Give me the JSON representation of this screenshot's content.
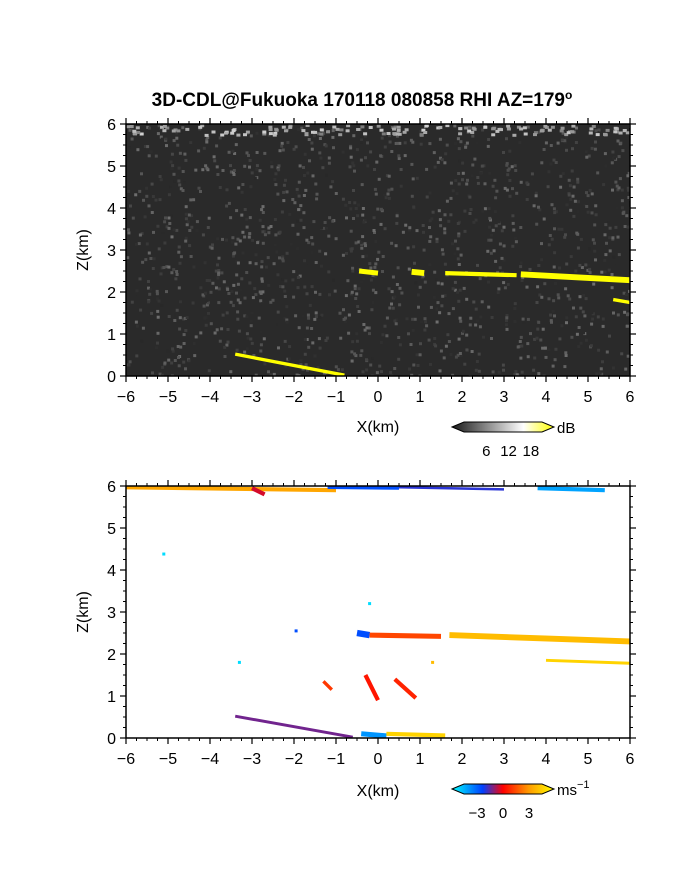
{
  "chart_data": [
    {
      "panel": "reflectivity",
      "type": "heatmap",
      "title": "3D-CDL@Fukuoka 170118 080858 RHI AZ=179",
      "title_superscript": "o",
      "xlabel": "X(km)",
      "ylabel": "Z(km)",
      "xlim": [
        -6,
        6
      ],
      "ylim": [
        0,
        6
      ],
      "x_ticks": [
        "−6",
        "−5",
        "−4",
        "−3",
        "−2",
        "−1",
        "0",
        "1",
        "2",
        "3",
        "4",
        "5",
        "6"
      ],
      "y_ticks": [
        "0",
        "1",
        "2",
        "3",
        "4",
        "5",
        "6"
      ],
      "colorbar": {
        "unit": "dB",
        "tick_labels": [
          "6",
          "12",
          "18"
        ],
        "ticks": [
          6,
          12,
          18
        ],
        "range": [
          0,
          21
        ],
        "colors": [
          "#1a1a1a",
          "#ffffff",
          "#ffff00"
        ]
      },
      "background_color": "#2a2a2a",
      "echo_color": "#ffff00",
      "echo_segments": [
        {
          "x": [
            -3.4,
            -0.8
          ],
          "z": [
            0.52,
            0.02
          ],
          "thickness": 0.08
        },
        {
          "x": [
            -0.45,
            0.0
          ],
          "z": [
            2.5,
            2.45
          ],
          "thickness": 0.12
        },
        {
          "x": [
            0.8,
            1.1
          ],
          "z": [
            2.48,
            2.45
          ],
          "thickness": 0.14
        },
        {
          "x": [
            1.6,
            3.3
          ],
          "z": [
            2.45,
            2.4
          ],
          "thickness": 0.1
        },
        {
          "x": [
            3.4,
            6.0
          ],
          "z": [
            2.42,
            2.28
          ],
          "thickness": 0.14
        },
        {
          "x": [
            5.6,
            6.0
          ],
          "z": [
            1.82,
            1.75
          ],
          "thickness": 0.08
        }
      ]
    },
    {
      "panel": "doppler-velocity",
      "type": "heatmap",
      "xlabel": "X(km)",
      "ylabel": "Z(km)",
      "xlim": [
        -6,
        6
      ],
      "ylim": [
        0,
        6
      ],
      "x_ticks": [
        "−6",
        "−5",
        "−4",
        "−3",
        "−2",
        "−1",
        "0",
        "1",
        "2",
        "3",
        "4",
        "5",
        "6"
      ],
      "y_ticks": [
        "0",
        "1",
        "2",
        "3",
        "4",
        "5",
        "6"
      ],
      "colorbar": {
        "unit": "ms",
        "unit_superscript": "−1",
        "tick_labels": [
          "−3",
          "0",
          "3"
        ],
        "ticks": [
          -3,
          0,
          3
        ],
        "range": [
          -4.5,
          4.5
        ],
        "colors": [
          "#00ffff",
          "#0040ff",
          "#ff0000",
          "#ff9900",
          "#ffff00"
        ]
      },
      "echo_segments": [
        {
          "x": [
            -3.4,
            -0.6
          ],
          "z": [
            0.52,
            0.02
          ],
          "thickness": 0.07,
          "v": -1.0
        },
        {
          "x": [
            -0.5,
            -0.2
          ],
          "z": [
            2.5,
            2.45
          ],
          "thickness": 0.15,
          "v": -2.0
        },
        {
          "x": [
            -0.2,
            1.5
          ],
          "z": [
            2.45,
            2.42
          ],
          "thickness": 0.12,
          "v": 1.0
        },
        {
          "x": [
            1.7,
            6.0
          ],
          "z": [
            2.45,
            2.3
          ],
          "thickness": 0.14,
          "v": 3.0
        },
        {
          "x": [
            4.0,
            6.0
          ],
          "z": [
            1.85,
            1.78
          ],
          "thickness": 0.07,
          "v": 3.5
        },
        {
          "x": [
            -1.3,
            -1.1
          ],
          "z": [
            1.35,
            1.15
          ],
          "thickness": 0.08,
          "v": 0.8
        },
        {
          "x": [
            -0.3,
            0.0
          ],
          "z": [
            1.5,
            0.9
          ],
          "thickness": 0.1,
          "v": 0.3
        },
        {
          "x": [
            0.4,
            0.9
          ],
          "z": [
            1.4,
            0.95
          ],
          "thickness": 0.1,
          "v": 0.5
        },
        {
          "x": [
            -0.4,
            0.2
          ],
          "z": [
            0.1,
            0.05
          ],
          "thickness": 0.12,
          "v": -3.0
        },
        {
          "x": [
            0.2,
            1.6
          ],
          "z": [
            0.1,
            0.06
          ],
          "thickness": 0.1,
          "v": 3.5
        },
        {
          "x": [
            -6.0,
            -1.0
          ],
          "z": [
            5.97,
            5.9
          ],
          "thickness": 0.1,
          "v": 2.5
        },
        {
          "x": [
            -3.0,
            -2.7
          ],
          "z": [
            5.95,
            5.8
          ],
          "thickness": 0.1,
          "v": -0.3
        },
        {
          "x": [
            -1.2,
            0.5
          ],
          "z": [
            5.97,
            5.95
          ],
          "thickness": 0.08,
          "v": -2.0
        },
        {
          "x": [
            0.5,
            3.0
          ],
          "z": [
            5.97,
            5.92
          ],
          "thickness": 0.06,
          "v": -1.5
        },
        {
          "x": [
            3.8,
            5.4
          ],
          "z": [
            5.95,
            5.9
          ],
          "thickness": 0.1,
          "v": -3.2
        }
      ],
      "echo_points": [
        {
          "x": -5.1,
          "z": 4.38,
          "v": -4.0
        },
        {
          "x": -1.95,
          "z": 2.55,
          "v": -2.0
        },
        {
          "x": -3.3,
          "z": 1.8,
          "v": -4.0
        },
        {
          "x": -0.2,
          "z": 3.2,
          "v": -4.0
        },
        {
          "x": 1.3,
          "z": 1.8,
          "v": 3.0
        }
      ]
    }
  ]
}
